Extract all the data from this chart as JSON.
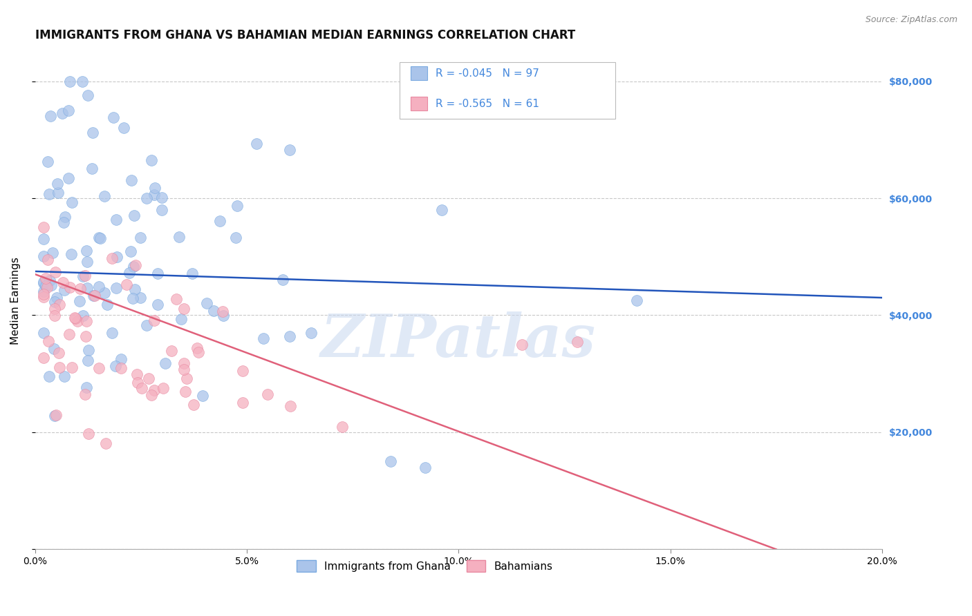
{
  "title": "IMMIGRANTS FROM GHANA VS BAHAMIAN MEDIAN EARNINGS CORRELATION CHART",
  "source_text": "Source: ZipAtlas.com",
  "ylabel": "Median Earnings",
  "xlim": [
    0.0,
    0.2
  ],
  "ylim": [
    0,
    85000
  ],
  "xtick_labels": [
    "0.0%",
    "5.0%",
    "10.0%",
    "15.0%",
    "20.0%"
  ],
  "xtick_values": [
    0.0,
    0.05,
    0.1,
    0.15,
    0.2
  ],
  "ytick_values": [
    0,
    20000,
    40000,
    60000,
    80000
  ],
  "ytick_labels": [
    "",
    "$20,000",
    "$40,000",
    "$60,000",
    "$80,000"
  ],
  "blue_color": "#aac4ea",
  "blue_edge_color": "#7aaae0",
  "blue_line_color": "#2255bb",
  "pink_color": "#f5b0c0",
  "pink_edge_color": "#e888a0",
  "pink_line_color": "#e0607a",
  "legend_r1": "-0.045",
  "legend_n1": "97",
  "legend_r2": "-0.565",
  "legend_n2": "61",
  "legend_label1": "Immigrants from Ghana",
  "legend_label2": "Bahamians",
  "watermark": "ZIPatlas",
  "blue_trend_x": [
    0.0,
    0.2
  ],
  "blue_trend_y": [
    47500,
    43000
  ],
  "pink_trend_x": [
    0.0,
    0.175
  ],
  "pink_trend_y": [
    47000,
    0
  ],
  "title_fontsize": 12,
  "axis_label_fontsize": 11,
  "tick_fontsize": 10,
  "background_color": "#ffffff",
  "grid_color": "#c8c8c8",
  "right_ytick_color": "#4488dd"
}
